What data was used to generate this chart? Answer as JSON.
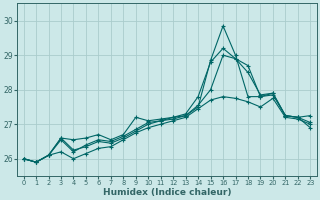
{
  "xlabel": "Humidex (Indice chaleur)",
  "bg_color": "#cce8e8",
  "grid_color": "#aacccc",
  "line_color": "#006666",
  "xlim": [
    -0.5,
    23.5
  ],
  "ylim": [
    25.5,
    30.5
  ],
  "xticks": [
    0,
    1,
    2,
    3,
    4,
    5,
    6,
    7,
    8,
    9,
    10,
    11,
    12,
    13,
    14,
    15,
    16,
    17,
    18,
    19,
    20,
    21,
    22,
    23
  ],
  "yticks": [
    26,
    27,
    28,
    29,
    30
  ],
  "line1_y": [
    26.0,
    25.9,
    26.1,
    26.6,
    26.25,
    26.35,
    26.5,
    26.45,
    26.6,
    26.8,
    27.0,
    27.1,
    27.2,
    27.25,
    27.5,
    28.85,
    29.85,
    29.0,
    27.8,
    27.8,
    27.85,
    27.25,
    27.2,
    26.9
  ],
  "line2_y": [
    26.0,
    25.9,
    26.1,
    26.6,
    26.55,
    26.6,
    26.7,
    26.55,
    26.7,
    27.2,
    27.1,
    27.15,
    27.2,
    27.3,
    27.8,
    28.8,
    29.2,
    28.9,
    28.7,
    27.8,
    27.9,
    27.25,
    27.2,
    27.25
  ],
  "line3_y": [
    26.0,
    25.9,
    26.1,
    26.55,
    26.2,
    26.4,
    26.55,
    26.5,
    26.65,
    26.85,
    27.05,
    27.1,
    27.15,
    27.25,
    27.55,
    28.0,
    29.0,
    28.9,
    28.5,
    27.85,
    27.9,
    27.25,
    27.2,
    27.05
  ],
  "line4_y": [
    26.0,
    25.9,
    26.1,
    26.2,
    26.0,
    26.15,
    26.3,
    26.35,
    26.55,
    26.75,
    26.9,
    27.0,
    27.1,
    27.2,
    27.45,
    27.7,
    27.8,
    27.75,
    27.65,
    27.5,
    27.75,
    27.2,
    27.15,
    27.0
  ]
}
